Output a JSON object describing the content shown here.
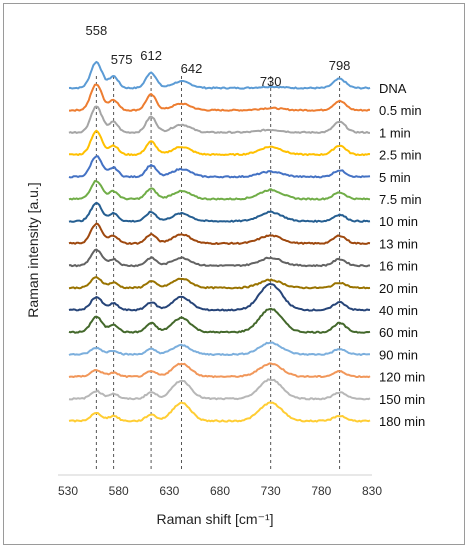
{
  "chart_data": {
    "type": "line",
    "xlabel": "Raman shift [cm⁻¹]",
    "ylabel": "Raman intensity [a.u.]",
    "xlim": [
      530,
      830
    ],
    "xticks": [
      530,
      580,
      630,
      680,
      730,
      780,
      830
    ],
    "grid": false,
    "stacked_offset": true,
    "peaks": [
      558,
      575,
      612,
      642,
      730,
      798
    ],
    "series": [
      {
        "name": "DNA",
        "color": "#5b9bd5",
        "peaks": {
          "558": 1.0,
          "575": 0.45,
          "612": 0.6,
          "642": 0.25,
          "730": 0.05,
          "798": 0.35
        }
      },
      {
        "name": "0.5 min",
        "color": "#ed7d31",
        "peaks": {
          "558": 1.0,
          "575": 0.4,
          "612": 0.6,
          "642": 0.25,
          "730": 0.08,
          "798": 0.35
        }
      },
      {
        "name": "1 min",
        "color": "#a5a5a5",
        "peaks": {
          "558": 1.0,
          "575": 0.4,
          "612": 0.6,
          "642": 0.3,
          "730": 0.1,
          "798": 0.4
        }
      },
      {
        "name": "2.5 min",
        "color": "#ffc000",
        "peaks": {
          "558": 0.9,
          "575": 0.35,
          "612": 0.5,
          "642": 0.3,
          "730": 0.3,
          "798": 0.35
        }
      },
      {
        "name": "5 min",
        "color": "#4472c4",
        "peaks": {
          "558": 0.8,
          "575": 0.35,
          "612": 0.45,
          "642": 0.3,
          "730": 0.2,
          "798": 0.25
        }
      },
      {
        "name": "7.5 min",
        "color": "#70ad47",
        "peaks": {
          "558": 0.7,
          "575": 0.3,
          "612": 0.4,
          "642": 0.3,
          "730": 0.35,
          "798": 0.25
        }
      },
      {
        "name": "10 min",
        "color": "#255e91",
        "peaks": {
          "558": 0.7,
          "575": 0.3,
          "612": 0.35,
          "642": 0.3,
          "730": 0.35,
          "798": 0.25
        }
      },
      {
        "name": "13 min",
        "color": "#9e480e",
        "peaks": {
          "558": 0.75,
          "575": 0.3,
          "612": 0.35,
          "642": 0.35,
          "730": 0.3,
          "798": 0.3
        }
      },
      {
        "name": "16 min",
        "color": "#636363",
        "peaks": {
          "558": 0.6,
          "575": 0.25,
          "612": 0.3,
          "642": 0.3,
          "730": 0.3,
          "798": 0.25
        }
      },
      {
        "name": "20 min",
        "color": "#997300",
        "peaks": {
          "558": 0.4,
          "575": 0.2,
          "612": 0.25,
          "642": 0.35,
          "730": 0.3,
          "798": 0.2
        }
      },
      {
        "name": "40 min",
        "color": "#264478",
        "peaks": {
          "558": 0.5,
          "575": 0.25,
          "612": 0.3,
          "642": 0.5,
          "730": 1.0,
          "798": 0.3
        }
      },
      {
        "name": "60 min",
        "color": "#43682b",
        "peaks": {
          "558": 0.6,
          "575": 0.3,
          "612": 0.35,
          "642": 0.55,
          "730": 0.9,
          "798": 0.35
        }
      },
      {
        "name": "90 min",
        "color": "#7cafdd",
        "peaks": {
          "558": 0.25,
          "575": 0.15,
          "612": 0.2,
          "642": 0.35,
          "730": 0.45,
          "798": 0.2
        }
      },
      {
        "name": "120 min",
        "color": "#f1975a",
        "peaks": {
          "558": 0.25,
          "575": 0.15,
          "612": 0.2,
          "642": 0.5,
          "730": 0.5,
          "798": 0.2
        }
      },
      {
        "name": "150 min",
        "color": "#b7b7b7",
        "peaks": {
          "558": 0.3,
          "575": 0.2,
          "612": 0.25,
          "642": 0.7,
          "730": 0.75,
          "798": 0.25
        }
      },
      {
        "name": "180 min",
        "color": "#ffcd33",
        "peaks": {
          "558": 0.3,
          "575": 0.2,
          "612": 0.25,
          "642": 0.7,
          "730": 0.7,
          "798": 0.2
        }
      }
    ]
  }
}
